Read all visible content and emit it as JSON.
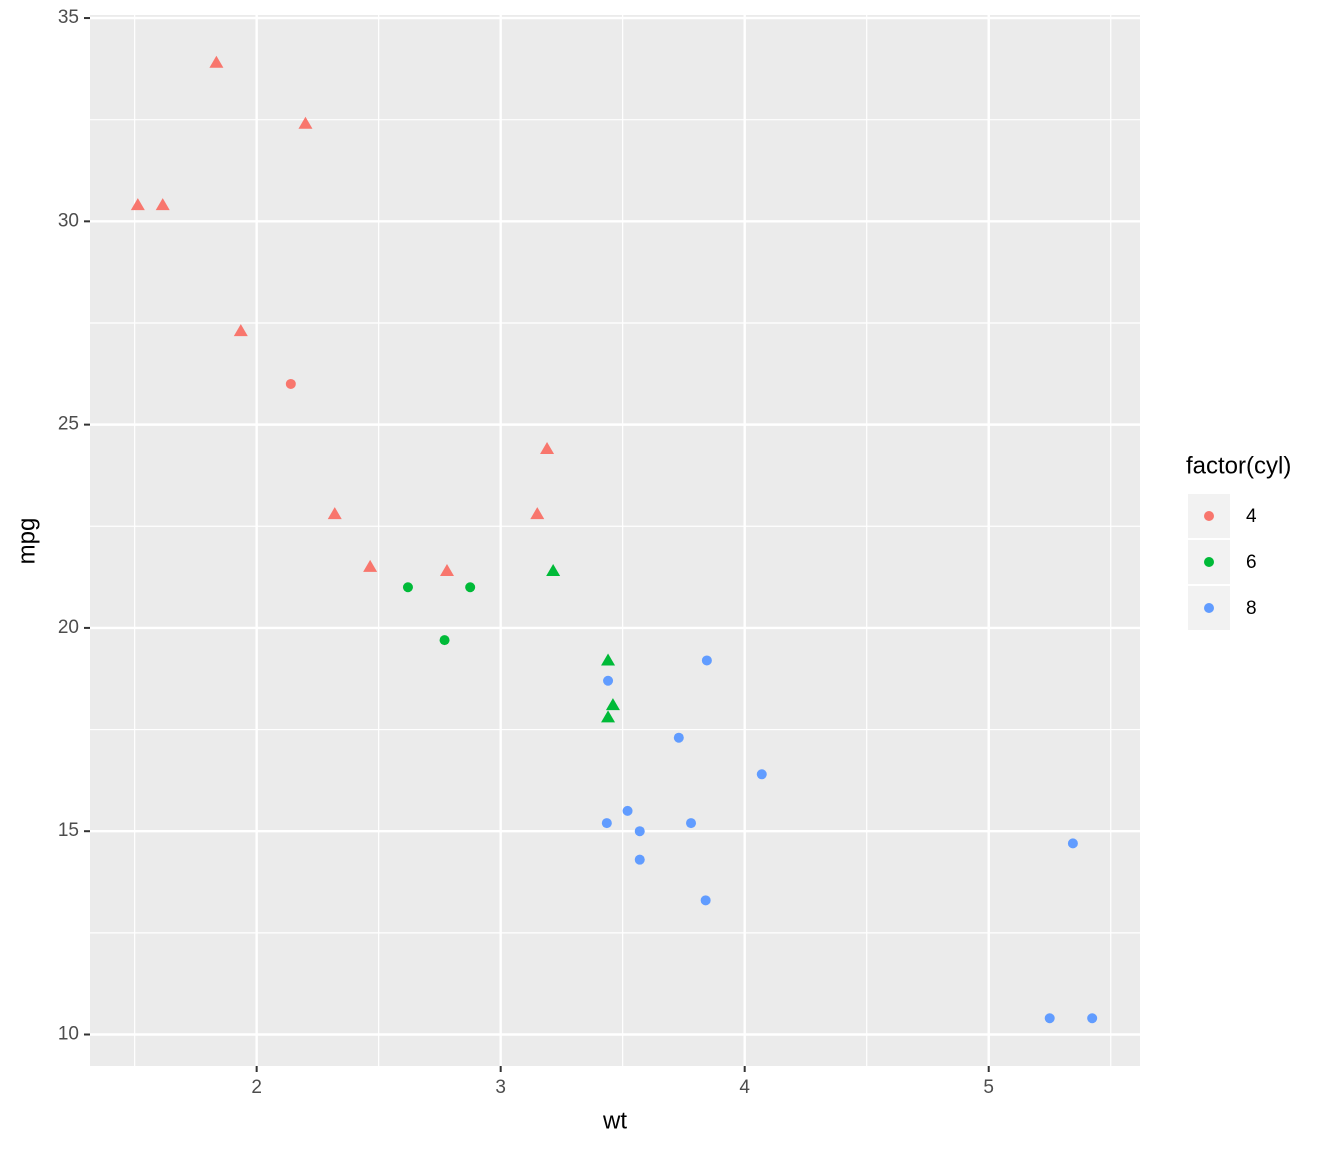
{
  "chart_data": {
    "type": "scatter",
    "x_label": "wt",
    "y_label": "mpg",
    "legend_title": "factor(cyl)",
    "legend": "right",
    "grid": true,
    "xlim": [
      1.317,
      5.62
    ],
    "ylim": [
      9.225,
      35.075
    ],
    "xticks": [
      2,
      3,
      4,
      5
    ],
    "yticks": [
      10,
      15,
      20,
      25,
      30,
      35
    ],
    "series": [
      {
        "name": "4",
        "color": "#F8766D",
        "x": [
          2.32,
          3.19,
          3.15,
          2.2,
          1.615,
          1.835,
          2.465,
          1.935,
          2.14,
          1.513,
          2.78
        ],
        "values": [
          22.8,
          24.4,
          22.8,
          32.4,
          30.4,
          33.9,
          21.5,
          27.3,
          26.0,
          30.4,
          21.4
        ],
        "shapes": [
          "triangle",
          "triangle",
          "triangle",
          "triangle",
          "triangle",
          "triangle",
          "triangle",
          "triangle",
          "circle",
          "triangle",
          "triangle"
        ]
      },
      {
        "name": "6",
        "color": "#00BA38",
        "x": [
          2.62,
          2.875,
          3.215,
          3.46,
          3.44,
          3.44,
          2.77
        ],
        "values": [
          21.0,
          21.0,
          21.4,
          18.1,
          19.2,
          17.8,
          19.7
        ],
        "shapes": [
          "circle",
          "circle",
          "triangle",
          "triangle",
          "triangle",
          "triangle",
          "circle"
        ]
      },
      {
        "name": "8",
        "color": "#619CFF",
        "x": [
          3.44,
          3.57,
          4.07,
          3.73,
          3.78,
          5.25,
          5.424,
          5.345,
          3.52,
          3.435,
          3.84,
          3.845,
          3.57
        ],
        "values": [
          18.7,
          14.3,
          16.4,
          17.3,
          15.2,
          10.4,
          10.4,
          14.7,
          15.5,
          15.2,
          13.3,
          19.2,
          15.0
        ],
        "shapes": [
          "circle",
          "circle",
          "circle",
          "circle",
          "circle",
          "circle",
          "circle",
          "circle",
          "circle",
          "circle",
          "circle",
          "circle",
          "circle"
        ]
      }
    ]
  }
}
